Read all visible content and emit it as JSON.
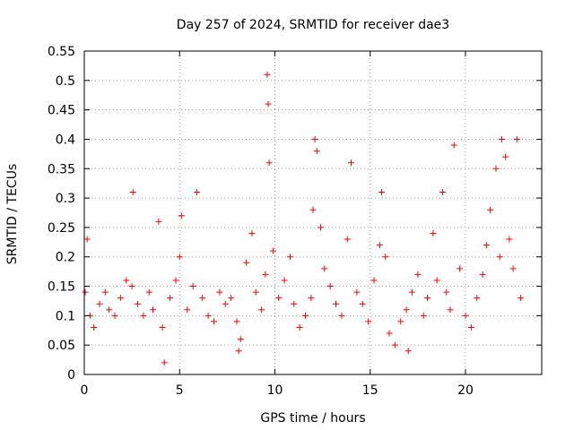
{
  "chart_data": {
    "type": "scatter",
    "title": "Day 257 of 2024, SRMTID for receiver dae3",
    "xlabel": "GPS time / hours",
    "ylabel": "SRMTID / TECUs",
    "xlim": [
      0,
      24
    ],
    "ylim": [
      0,
      0.55
    ],
    "xticks": [
      0,
      5,
      10,
      15,
      20
    ],
    "yticks": [
      0,
      0.05,
      0.1,
      0.15,
      0.2,
      0.25,
      0.3,
      0.35,
      0.4,
      0.45,
      0.5,
      0.55
    ],
    "grid": true,
    "marker": "+",
    "color": "#ff0000",
    "series": [
      {
        "name": "SRMTID",
        "x": [
          0.05,
          0.15,
          0.3,
          0.5,
          0.8,
          1.1,
          1.3,
          1.6,
          1.9,
          2.2,
          2.5,
          2.55,
          2.8,
          3.1,
          3.4,
          3.6,
          3.9,
          4.1,
          4.2,
          4.5,
          4.8,
          5.0,
          5.1,
          5.4,
          5.7,
          5.9,
          6.2,
          6.5,
          6.8,
          7.1,
          7.4,
          7.7,
          8.0,
          8.1,
          8.2,
          8.5,
          8.8,
          9.0,
          9.3,
          9.5,
          9.6,
          9.65,
          9.7,
          9.9,
          10.2,
          10.5,
          10.8,
          11.0,
          11.3,
          11.6,
          11.9,
          12.0,
          12.1,
          12.2,
          12.4,
          12.6,
          12.9,
          13.2,
          13.5,
          13.8,
          14.0,
          14.3,
          14.6,
          14.9,
          15.2,
          15.5,
          15.6,
          15.8,
          16.0,
          16.3,
          16.6,
          16.9,
          17.0,
          17.2,
          17.5,
          17.8,
          18.0,
          18.3,
          18.5,
          18.8,
          19.0,
          19.2,
          19.4,
          19.7,
          20.0,
          20.3,
          20.6,
          20.9,
          21.1,
          21.3,
          21.6,
          21.8,
          21.9,
          22.1,
          22.3,
          22.5,
          22.7,
          22.9
        ],
        "y": [
          0.14,
          0.23,
          0.1,
          0.08,
          0.12,
          0.14,
          0.11,
          0.1,
          0.13,
          0.16,
          0.15,
          0.31,
          0.12,
          0.1,
          0.14,
          0.11,
          0.26,
          0.08,
          0.02,
          0.13,
          0.16,
          0.2,
          0.27,
          0.11,
          0.15,
          0.31,
          0.13,
          0.1,
          0.09,
          0.14,
          0.12,
          0.13,
          0.09,
          0.04,
          0.06,
          0.19,
          0.24,
          0.14,
          0.11,
          0.17,
          0.51,
          0.46,
          0.36,
          0.21,
          0.13,
          0.16,
          0.2,
          0.12,
          0.08,
          0.1,
          0.13,
          0.28,
          0.4,
          0.38,
          0.25,
          0.18,
          0.15,
          0.12,
          0.1,
          0.23,
          0.36,
          0.14,
          0.12,
          0.09,
          0.16,
          0.22,
          0.31,
          0.2,
          0.07,
          0.05,
          0.09,
          0.11,
          0.04,
          0.14,
          0.17,
          0.1,
          0.13,
          0.24,
          0.16,
          0.31,
          0.14,
          0.11,
          0.39,
          0.18,
          0.1,
          0.08,
          0.13,
          0.17,
          0.22,
          0.28,
          0.35,
          0.2,
          0.4,
          0.37,
          0.23,
          0.18,
          0.4,
          0.13
        ]
      }
    ]
  }
}
